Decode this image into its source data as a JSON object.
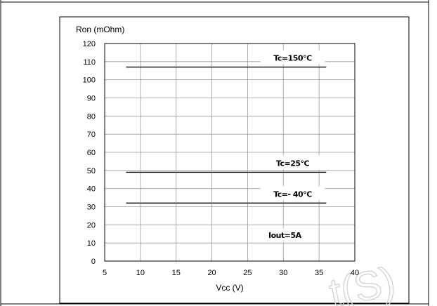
{
  "chart_data": {
    "type": "line",
    "xlabel": "Vcc (V)",
    "ylabel": "Ron (mOhm)",
    "xlim": [
      5,
      40
    ],
    "ylim": [
      0,
      120
    ],
    "xticks": [
      5,
      10,
      15,
      20,
      25,
      30,
      35,
      40
    ],
    "yticks": [
      0,
      10,
      20,
      30,
      40,
      50,
      60,
      70,
      80,
      90,
      100,
      110,
      120
    ],
    "grid": true,
    "series": [
      {
        "name": "Tc=150°C",
        "x": [
          8,
          36
        ],
        "y": [
          107,
          107
        ]
      },
      {
        "name": "Tc=25°C",
        "x": [
          8,
          36
        ],
        "y": [
          49,
          49
        ]
      },
      {
        "name": "Tc=- 40°C",
        "x": [
          8,
          36
        ],
        "y": [
          32,
          32
        ]
      }
    ],
    "annotations": [
      {
        "text": "Iout=5A"
      }
    ],
    "watermark": "t(S)",
    "colors": {
      "line": "#000000",
      "grid": "#9a9a9a",
      "frame": "#000000"
    }
  }
}
